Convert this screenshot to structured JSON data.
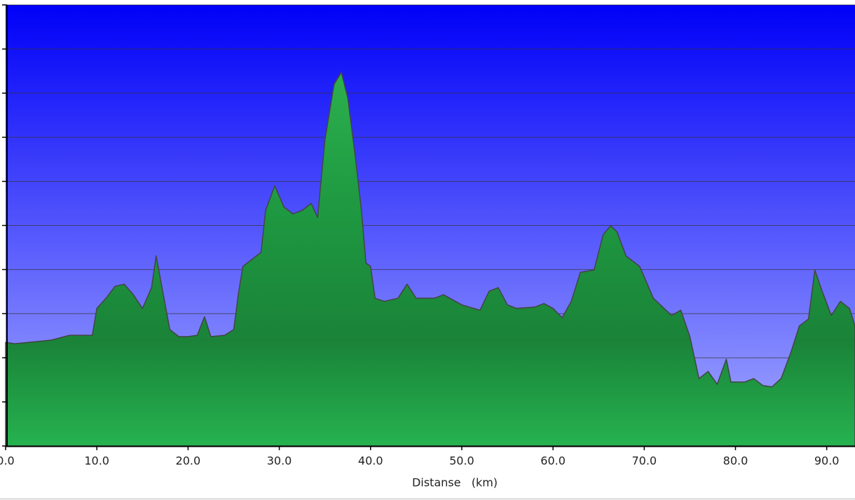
{
  "chart_data": {
    "type": "area",
    "x_label": "Distanse   (km)",
    "x": [
      0,
      1,
      5,
      7,
      9.5,
      10,
      11,
      12,
      13,
      14,
      15,
      16,
      16.5,
      17,
      18,
      19,
      20,
      21,
      21.8,
      22.5,
      24,
      25,
      25.5,
      26,
      27,
      28,
      28.5,
      29.5,
      30.5,
      31.5,
      32.5,
      33.5,
      34.2,
      35,
      36,
      36.8,
      37.5,
      38.3,
      39,
      39.5,
      40,
      40.5,
      41.5,
      43,
      44,
      45,
      47,
      48,
      50,
      52,
      53,
      54,
      55,
      56,
      58,
      59,
      60,
      61,
      62,
      63,
      64.5,
      65.5,
      66.3,
      67,
      68,
      69.5,
      71,
      73,
      74,
      75,
      76,
      77,
      78,
      79,
      79.5,
      81,
      82,
      83,
      84,
      85,
      86,
      87,
      88,
      88.7,
      89.5,
      90.5,
      91.5,
      92.5,
      93.1
    ],
    "values": [
      2.35,
      2.32,
      2.4,
      2.51,
      2.51,
      3.12,
      3.35,
      3.62,
      3.67,
      3.43,
      3.12,
      3.59,
      4.31,
      3.75,
      2.64,
      2.48,
      2.48,
      2.51,
      2.93,
      2.48,
      2.51,
      2.64,
      3.43,
      4.07,
      4.23,
      4.39,
      5.34,
      5.9,
      5.42,
      5.26,
      5.34,
      5.5,
      5.18,
      6.93,
      8.2,
      8.47,
      7.89,
      6.61,
      5.34,
      4.15,
      4.07,
      3.35,
      3.28,
      3.35,
      3.67,
      3.35,
      3.35,
      3.43,
      3.2,
      3.08,
      3.51,
      3.59,
      3.2,
      3.12,
      3.15,
      3.23,
      3.12,
      2.91,
      3.28,
      3.94,
      3.99,
      4.79,
      4.99,
      4.86,
      4.31,
      4.07,
      3.35,
      2.96,
      3.08,
      2.48,
      1.53,
      1.69,
      1.4,
      1.97,
      1.45,
      1.45,
      1.53,
      1.37,
      1.34,
      1.53,
      2.08,
      2.72,
      2.88,
      3.99,
      3.51,
      2.96,
      3.28,
      3.12,
      2.72
    ],
    "color": "#1f9a42",
    "xlim": [
      0,
      93.1
    ],
    "ylim": [
      0,
      10
    ],
    "xticks": [
      {
        "value": 0,
        "label": "0.0"
      },
      {
        "value": 10,
        "label": "10.0"
      },
      {
        "value": 20,
        "label": "20.0"
      },
      {
        "value": 30,
        "label": "30.0"
      },
      {
        "value": 40,
        "label": "40.0"
      },
      {
        "value": 50,
        "label": "50.0"
      },
      {
        "value": 60,
        "label": "60.0"
      },
      {
        "value": 70,
        "label": "70.0"
      },
      {
        "value": 80,
        "label": "80.0"
      },
      {
        "value": 90,
        "label": "90.0"
      }
    ],
    "yticks": [
      0,
      1,
      2,
      3,
      4,
      5,
      6,
      7,
      8,
      9,
      10
    ],
    "grid": true
  }
}
